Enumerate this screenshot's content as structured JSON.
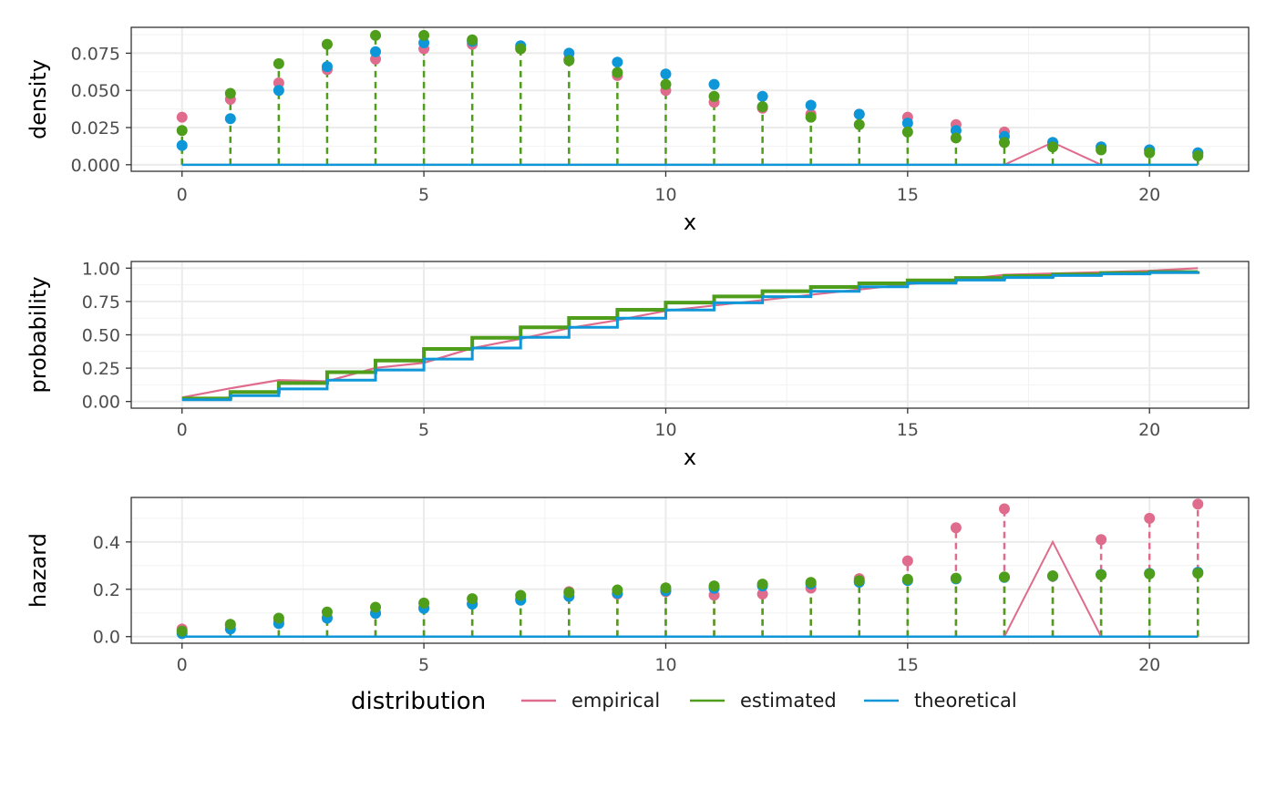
{
  "colors": {
    "empirical": "#DF6C8D",
    "estimated": "#4E9D1B",
    "theoretical": "#0E97D8"
  },
  "legend": {
    "title": "distribution",
    "items": [
      {
        "key": "empirical",
        "label": "empirical"
      },
      {
        "key": "estimated",
        "label": "estimated"
      },
      {
        "key": "theoretical",
        "label": "theoretical"
      }
    ]
  },
  "chart_data": [
    {
      "type": "scatter",
      "panel": "density",
      "xlabel": "x",
      "ylabel": "density",
      "xlim": [
        0,
        21
      ],
      "ylim": [
        0,
        0.088
      ],
      "xticks": [
        0,
        5,
        10,
        15,
        20
      ],
      "xtick_labels": [
        "0",
        "5",
        "10",
        "15",
        "20"
      ],
      "yticks": [
        0,
        0.025,
        0.05,
        0.075
      ],
      "ytick_labels": [
        "0.000",
        "0.025",
        "0.050",
        "0.075"
      ],
      "x": [
        0,
        1,
        2,
        3,
        4,
        5,
        6,
        7,
        8,
        9,
        10,
        11,
        12,
        13,
        14,
        15,
        16,
        17,
        18,
        19,
        20,
        21
      ],
      "series": [
        {
          "name": "empirical",
          "values": [
            0.032,
            0.044,
            0.055,
            0.064,
            0.071,
            0.078,
            0.081,
            0.078,
            0.071,
            0.06,
            0.05,
            0.042,
            0.038,
            0.034,
            0.034,
            0.032,
            0.027,
            0.022,
            0.015,
            0.012,
            0.01,
            0.008
          ]
        },
        {
          "name": "estimated",
          "values": [
            0.023,
            0.048,
            0.068,
            0.081,
            0.087,
            0.087,
            0.084,
            0.078,
            0.07,
            0.062,
            0.054,
            0.046,
            0.039,
            0.032,
            0.027,
            0.022,
            0.018,
            0.015,
            0.012,
            0.01,
            0.008,
            0.006
          ]
        },
        {
          "name": "theoretical",
          "values": [
            0.013,
            0.031,
            0.05,
            0.066,
            0.076,
            0.082,
            0.083,
            0.08,
            0.075,
            0.069,
            0.061,
            0.054,
            0.046,
            0.04,
            0.034,
            0.028,
            0.023,
            0.019,
            0.015,
            0.012,
            0.01,
            0.008
          ]
        }
      ],
      "empirical_line": [
        0,
        0,
        0,
        0,
        0,
        0,
        0,
        0,
        0,
        0,
        0,
        0,
        0,
        0,
        0,
        0,
        0,
        0,
        0.015,
        0,
        0,
        0
      ],
      "theoretical_line": [
        0,
        0,
        0,
        0,
        0,
        0,
        0,
        0,
        0,
        0,
        0,
        0,
        0,
        0,
        0,
        0,
        0,
        0,
        0,
        0,
        0,
        0
      ],
      "stem_series": "estimated"
    },
    {
      "type": "line",
      "panel": "probability",
      "xlabel": "x",
      "ylabel": "probability",
      "xlim": [
        0,
        21
      ],
      "ylim": [
        0,
        1
      ],
      "xticks": [
        0,
        5,
        10,
        15,
        20
      ],
      "xtick_labels": [
        "0",
        "5",
        "10",
        "15",
        "20"
      ],
      "yticks": [
        0,
        0.25,
        0.5,
        0.75,
        1
      ],
      "ytick_labels": [
        "0.00",
        "0.25",
        "0.50",
        "0.75",
        "1.00"
      ],
      "x": [
        0,
        1,
        2,
        3,
        4,
        5,
        6,
        7,
        8,
        9,
        10,
        11,
        12,
        13,
        14,
        15,
        16,
        17,
        18,
        19,
        20,
        21
      ],
      "series": [
        {
          "name": "empirical",
          "values": [
            0.03,
            0.099,
            0.16,
            0.152,
            0.252,
            0.29,
            0.4,
            0.47,
            0.55,
            0.61,
            0.68,
            0.72,
            0.76,
            0.8,
            0.84,
            0.88,
            0.91,
            0.95,
            0.96,
            0.97,
            0.98,
            1.0
          ]
        },
        {
          "name": "estimated",
          "values": [
            0.023,
            0.071,
            0.139,
            0.22,
            0.307,
            0.394,
            0.478,
            0.556,
            0.626,
            0.688,
            0.742,
            0.788,
            0.827,
            0.859,
            0.886,
            0.908,
            0.926,
            0.941,
            0.953,
            0.963,
            0.971,
            0.977
          ]
        },
        {
          "name": "theoretical",
          "values": [
            0.013,
            0.044,
            0.094,
            0.16,
            0.236,
            0.318,
            0.401,
            0.481,
            0.556,
            0.625,
            0.686,
            0.74,
            0.786,
            0.826,
            0.86,
            0.888,
            0.911,
            0.93,
            0.945,
            0.957,
            0.967,
            0.975
          ]
        }
      ]
    },
    {
      "type": "scatter",
      "panel": "hazard",
      "xlabel": "",
      "ylabel": "hazard",
      "xlim": [
        0,
        21
      ],
      "ylim": [
        0,
        0.56
      ],
      "xticks": [
        0,
        5,
        10,
        15,
        20
      ],
      "xtick_labels": [
        "0",
        "5",
        "10",
        "15",
        "20"
      ],
      "yticks": [
        0,
        0.2,
        0.4
      ],
      "ytick_labels": [
        "0.0",
        "0.2",
        "0.4"
      ],
      "x": [
        0,
        1,
        2,
        3,
        4,
        5,
        6,
        7,
        8,
        9,
        10,
        11,
        12,
        13,
        14,
        15,
        16,
        17,
        18,
        19,
        20,
        21
      ],
      "series": [
        {
          "name": "empirical",
          "values": [
            0.032,
            0.048,
            0.065,
            0.08,
            0.1,
            0.124,
            0.14,
            0.16,
            0.19,
            0.18,
            0.19,
            0.175,
            0.18,
            0.205,
            0.245,
            0.32,
            0.46,
            0.54,
            0.255,
            0.41,
            0.5,
            0.56
          ]
        },
        {
          "name": "estimated",
          "values": [
            0.023,
            0.052,
            0.078,
            0.104,
            0.124,
            0.142,
            0.16,
            0.174,
            0.186,
            0.197,
            0.206,
            0.214,
            0.222,
            0.229,
            0.236,
            0.242,
            0.247,
            0.252,
            0.257,
            0.261,
            0.265,
            0.268
          ]
        },
        {
          "name": "theoretical",
          "values": [
            0.013,
            0.032,
            0.055,
            0.078,
            0.098,
            0.119,
            0.137,
            0.154,
            0.17,
            0.183,
            0.194,
            0.204,
            0.214,
            0.222,
            0.23,
            0.237,
            0.244,
            0.25,
            0.256,
            0.262,
            0.267,
            0.272
          ]
        }
      ],
      "empirical_line": [
        0,
        0,
        0,
        0,
        0,
        0,
        0,
        0,
        0,
        0,
        0,
        0,
        0,
        0,
        0,
        0,
        0,
        0,
        0.4,
        0,
        0,
        0
      ],
      "theoretical_line": [
        0,
        0,
        0,
        0,
        0,
        0,
        0,
        0,
        0,
        0,
        0,
        0,
        0,
        0,
        0,
        0,
        0,
        0,
        0,
        0,
        0,
        0
      ],
      "stem_series": "estimated",
      "stem_series_extra": "empirical"
    }
  ]
}
